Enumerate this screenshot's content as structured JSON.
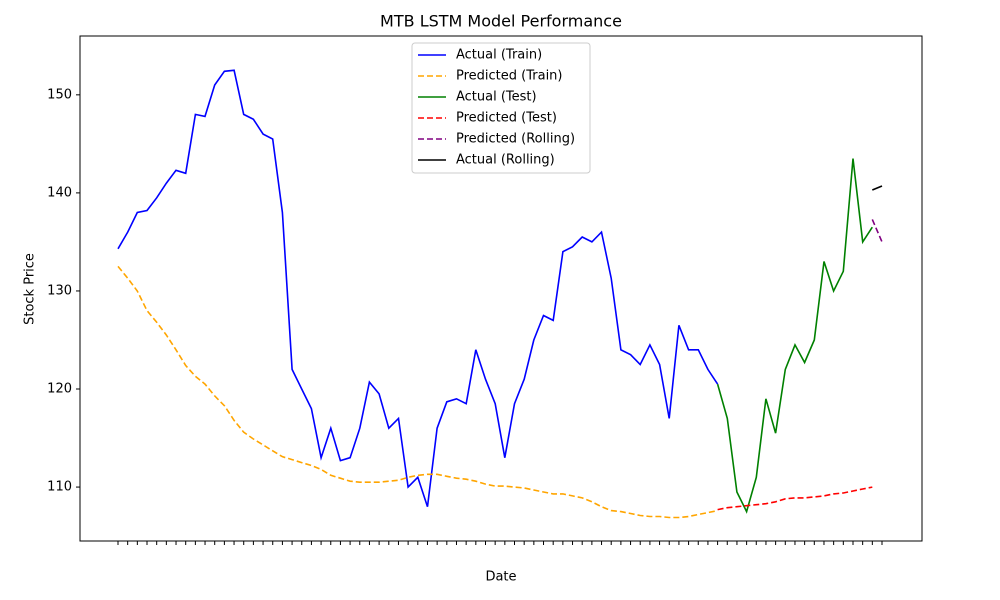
{
  "chart_data": {
    "type": "line",
    "title": "MTB LSTM Model Performance",
    "x_label": "Date",
    "y_label": "Stock Price",
    "categories": [
      null,
      null,
      null,
      null,
      null,
      null,
      null,
      null,
      null,
      null,
      null,
      null,
      null,
      null,
      null,
      null,
      null,
      null,
      null,
      null,
      null,
      null,
      null,
      null,
      null,
      null,
      null,
      null,
      null,
      null,
      null,
      null,
      null,
      null,
      null,
      null,
      null,
      null,
      null,
      null,
      null,
      null,
      null,
      null,
      null,
      null,
      null,
      null,
      null,
      null,
      null,
      null,
      null,
      null,
      null,
      null,
      null,
      null,
      null,
      null,
      null,
      null,
      null,
      null,
      null,
      null,
      null,
      null,
      null,
      null,
      null,
      null,
      null,
      null,
      null,
      null,
      null,
      null,
      null,
      null
    ],
    "ylim": [
      104.5,
      156
    ],
    "yticks": [
      110,
      120,
      130,
      140,
      150
    ],
    "legend": "upper center",
    "series": [
      {
        "name": "Actual (Train)",
        "color": "#0000ff",
        "style": "solid",
        "values": [
          134.3,
          136,
          138,
          138.2,
          139.5,
          141,
          142.3,
          142,
          148,
          147.8,
          151,
          152.4,
          152.5,
          148,
          147.5,
          146,
          145.5,
          138,
          122,
          120,
          118,
          113,
          116,
          112.7,
          113,
          116,
          120.7,
          119.5,
          116,
          117,
          110,
          111,
          108,
          116,
          118.7,
          119,
          118.5,
          124,
          121,
          118.5,
          113,
          118.5,
          121,
          125,
          127.5,
          127,
          134,
          134.5,
          135.5,
          135,
          136,
          131.3,
          124,
          123.5,
          122.5,
          124.5,
          122.5,
          117,
          126.5,
          124,
          124,
          122,
          120.5,
          null,
          null,
          null,
          null,
          null,
          null,
          null,
          null,
          null,
          null,
          null,
          null,
          null,
          null,
          null,
          null,
          null
        ]
      },
      {
        "name": "Predicted (Train)",
        "color": "#ffa500",
        "style": "dashed",
        "values": [
          132.5,
          131.3,
          130,
          128,
          126.8,
          125.5,
          124,
          122.4,
          121.3,
          120.5,
          119.3,
          118.3,
          116.8,
          115.6,
          114.9,
          114.3,
          113.7,
          113.1,
          112.8,
          112.5,
          112.2,
          111.8,
          111.2,
          110.9,
          110.6,
          110.5,
          110.5,
          110.5,
          110.6,
          110.7,
          111,
          111.2,
          111.3,
          111.3,
          111.1,
          110.9,
          110.8,
          110.6,
          110.3,
          110.1,
          110.1,
          110,
          109.9,
          109.7,
          109.5,
          109.3,
          109.3,
          109.1,
          108.9,
          108.5,
          108,
          107.6,
          107.5,
          107.3,
          107.1,
          107,
          107,
          106.9,
          106.9,
          107,
          107.2,
          107.4,
          107.6,
          null,
          null,
          null,
          null,
          null,
          null,
          null,
          null,
          null,
          null,
          null,
          null,
          null,
          null,
          null,
          null,
          null
        ]
      },
      {
        "name": "Actual (Test)",
        "color": "#008000",
        "style": "solid",
        "values": [
          null,
          null,
          null,
          null,
          null,
          null,
          null,
          null,
          null,
          null,
          null,
          null,
          null,
          null,
          null,
          null,
          null,
          null,
          null,
          null,
          null,
          null,
          null,
          null,
          null,
          null,
          null,
          null,
          null,
          null,
          null,
          null,
          null,
          null,
          null,
          null,
          null,
          null,
          null,
          null,
          null,
          null,
          null,
          null,
          null,
          null,
          null,
          null,
          null,
          null,
          null,
          null,
          null,
          null,
          null,
          null,
          null,
          null,
          null,
          null,
          null,
          null,
          120.5,
          117,
          109.5,
          107.5,
          111,
          119,
          115.5,
          122,
          124.5,
          122.7,
          125,
          133,
          130,
          132,
          143.5,
          135,
          136.5,
          null
        ]
      },
      {
        "name": "Predicted (Test)",
        "color": "#ff0000",
        "style": "dashed",
        "values": [
          null,
          null,
          null,
          null,
          null,
          null,
          null,
          null,
          null,
          null,
          null,
          null,
          null,
          null,
          null,
          null,
          null,
          null,
          null,
          null,
          null,
          null,
          null,
          null,
          null,
          null,
          null,
          null,
          null,
          null,
          null,
          null,
          null,
          null,
          null,
          null,
          null,
          null,
          null,
          null,
          null,
          null,
          null,
          null,
          null,
          null,
          null,
          null,
          null,
          null,
          null,
          null,
          null,
          null,
          null,
          null,
          null,
          null,
          null,
          null,
          null,
          null,
          107.7,
          107.9,
          108,
          108.1,
          108.2,
          108.3,
          108.5,
          108.8,
          108.9,
          108.9,
          109,
          109.1,
          109.3,
          109.4,
          109.6,
          109.8,
          110,
          null
        ]
      },
      {
        "name": "Predicted (Rolling)",
        "color": "#800080",
        "style": "dashed",
        "values": [
          null,
          null,
          null,
          null,
          null,
          null,
          null,
          null,
          null,
          null,
          null,
          null,
          null,
          null,
          null,
          null,
          null,
          null,
          null,
          null,
          null,
          null,
          null,
          null,
          null,
          null,
          null,
          null,
          null,
          null,
          null,
          null,
          null,
          null,
          null,
          null,
          null,
          null,
          null,
          null,
          null,
          null,
          null,
          null,
          null,
          null,
          null,
          null,
          null,
          null,
          null,
          null,
          null,
          null,
          null,
          null,
          null,
          null,
          null,
          null,
          null,
          null,
          null,
          null,
          null,
          null,
          null,
          null,
          null,
          null,
          null,
          null,
          null,
          null,
          null,
          null,
          null,
          null,
          137.3,
          135
        ]
      },
      {
        "name": "Actual (Rolling)",
        "color": "#000000",
        "style": "solid",
        "values": [
          null,
          null,
          null,
          null,
          null,
          null,
          null,
          null,
          null,
          null,
          null,
          null,
          null,
          null,
          null,
          null,
          null,
          null,
          null,
          null,
          null,
          null,
          null,
          null,
          null,
          null,
          null,
          null,
          null,
          null,
          null,
          null,
          null,
          null,
          null,
          null,
          null,
          null,
          null,
          null,
          null,
          null,
          null,
          null,
          null,
          null,
          null,
          null,
          null,
          null,
          null,
          null,
          null,
          null,
          null,
          null,
          null,
          null,
          null,
          null,
          null,
          null,
          null,
          null,
          null,
          null,
          null,
          null,
          null,
          null,
          null,
          null,
          null,
          null,
          null,
          null,
          null,
          null,
          140.3,
          140.7
        ]
      }
    ]
  }
}
